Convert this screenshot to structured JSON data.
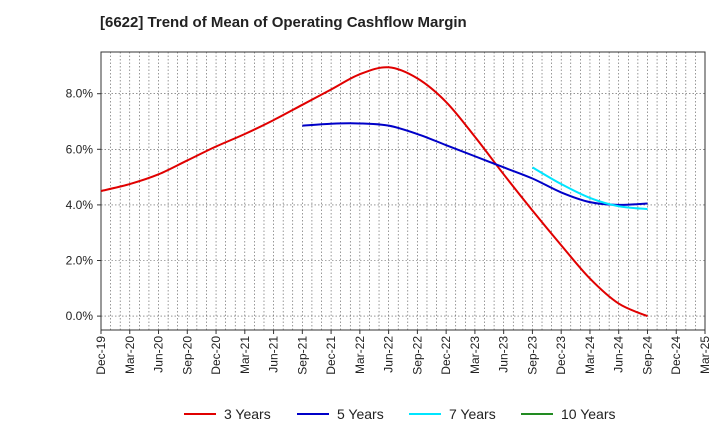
{
  "chart_data": {
    "type": "line",
    "title": "[6622]  Trend of Mean of Operating Cashflow Margin",
    "xlabel": "",
    "ylabel": "",
    "ylim": [
      -0.5,
      9.5
    ],
    "yticks": [
      0.0,
      2.0,
      4.0,
      6.0,
      8.0
    ],
    "ytick_labels": [
      "0.0%",
      "2.0%",
      "4.0%",
      "6.0%",
      "8.0%"
    ],
    "x_tick_labels": [
      "Dec-19",
      "Mar-20",
      "Jun-20",
      "Sep-20",
      "Dec-20",
      "Mar-21",
      "Jun-21",
      "Sep-21",
      "Dec-21",
      "Mar-22",
      "Jun-22",
      "Sep-22",
      "Dec-22",
      "Mar-23",
      "Jun-23",
      "Sep-23",
      "Dec-23",
      "Mar-24",
      "Jun-24",
      "Sep-24",
      "Dec-24",
      "Mar-25"
    ],
    "grid": true,
    "legend_position": "bottom",
    "series": [
      {
        "name": "3 Years",
        "color": "#e00000",
        "start_index": 0,
        "values": [
          4.5,
          4.75,
          5.1,
          5.6,
          6.1,
          6.55,
          7.05,
          7.6,
          8.15,
          8.7,
          8.95,
          8.55,
          7.7,
          6.45,
          5.1,
          3.8,
          2.55,
          1.35,
          0.45,
          0.0
        ]
      },
      {
        "name": "5 Years",
        "color": "#0000c8",
        "start_index": 7,
        "values": [
          6.85,
          6.92,
          6.93,
          6.85,
          6.55,
          6.15,
          5.75,
          5.35,
          4.95,
          4.45,
          4.1,
          4.0,
          4.05
        ]
      },
      {
        "name": "7 Years",
        "color": "#00e5ff",
        "start_index": 15,
        "values": [
          5.35,
          4.75,
          4.25,
          3.95,
          3.85
        ]
      },
      {
        "name": "10 Years",
        "color": "#228b22",
        "start_index": 0,
        "values": []
      }
    ]
  }
}
